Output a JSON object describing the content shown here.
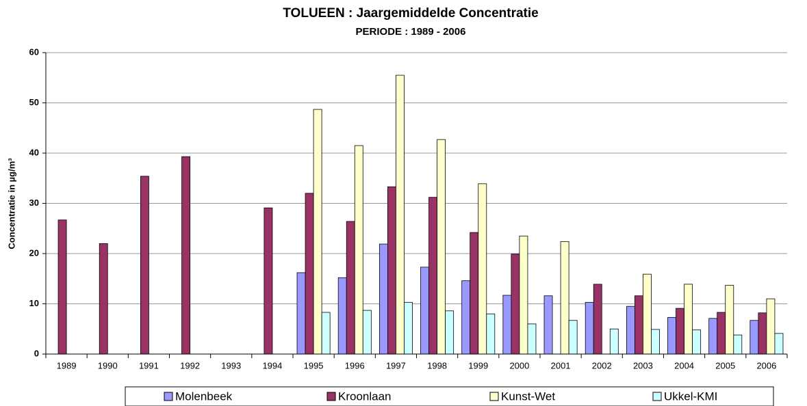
{
  "chart_data": {
    "type": "bar",
    "title": "TOLUEEN : Jaargemiddelde Concentratie",
    "subtitle": "PERIODE : 1989 - 2006",
    "y_label": "Concentratie in µg/m³",
    "categories": [
      "1989",
      "1990",
      "1991",
      "1992",
      "1993",
      "1994",
      "1995",
      "1996",
      "1997",
      "1998",
      "1999",
      "2000",
      "2001",
      "2002",
      "2003",
      "2004",
      "2005",
      "2006"
    ],
    "series": [
      {
        "name": "Molenbeek",
        "color": "#9999ff",
        "values": [
          null,
          null,
          null,
          null,
          null,
          null,
          16.2,
          15.2,
          21.9,
          17.3,
          14.6,
          11.7,
          11.6,
          10.3,
          9.5,
          7.3,
          7.1,
          6.7
        ]
      },
      {
        "name": "Kroonlaan",
        "color": "#993366",
        "values": [
          26.7,
          22.0,
          35.4,
          39.3,
          null,
          29.1,
          32.0,
          26.4,
          33.3,
          31.2,
          24.2,
          19.9,
          null,
          13.9,
          11.6,
          9.1,
          8.3,
          8.2
        ]
      },
      {
        "name": "Kunst-Wet",
        "color": "#ffffcc",
        "values": [
          null,
          null,
          null,
          null,
          null,
          null,
          48.7,
          41.5,
          55.5,
          42.7,
          33.9,
          23.5,
          22.4,
          null,
          15.9,
          13.9,
          13.7,
          11.0
        ]
      },
      {
        "name": "Ukkel-KMI",
        "color": "#ccffff",
        "values": [
          null,
          null,
          null,
          null,
          null,
          null,
          8.3,
          8.7,
          10.3,
          8.6,
          8.0,
          6.0,
          6.7,
          5.0,
          4.9,
          4.8,
          3.8,
          4.1
        ]
      }
    ],
    "ylim": [
      0,
      60
    ],
    "yticks": [
      0,
      10,
      20,
      30,
      40,
      50,
      60
    ],
    "grid": true,
    "legend": "bottom"
  }
}
